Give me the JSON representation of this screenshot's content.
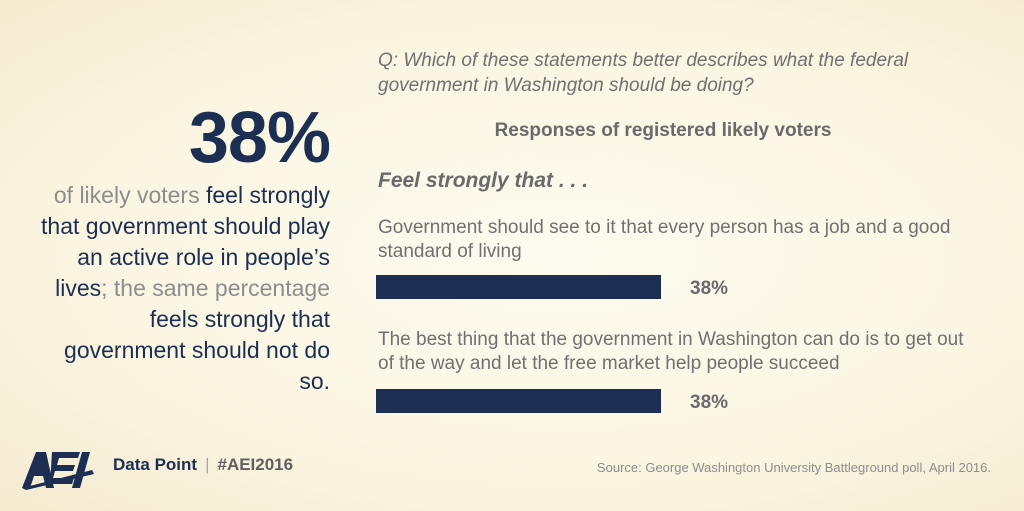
{
  "headline": {
    "value": "38%",
    "text_parts": [
      {
        "text": "of likely voters ",
        "muted": true
      },
      {
        "text": "feel strongly that government should play an active role in people’s lives",
        "muted": false
      },
      {
        "text": "; the same percentage ",
        "muted": true
      },
      {
        "text": "feels strongly that government should not do so.",
        "muted": false
      }
    ]
  },
  "question": "Q: Which of these statements better describes what the federal government in Washington should be doing?",
  "chart_data": {
    "type": "bar",
    "orientation": "horizontal",
    "title": "Responses of registered likely voters",
    "subtitle": "Feel strongly that . . .",
    "categories": [
      "Government should see to it that every person has a job and a good standard of living",
      "The best thing that the government in Washington can do is to get out of the way and let the free market help people succeed"
    ],
    "values": [
      38,
      38
    ],
    "value_labels": [
      "38%",
      "38%"
    ],
    "xlim": [
      0,
      100
    ],
    "grid": false,
    "bar_color": "#1c2f52"
  },
  "footer": {
    "logo": "aei-logo-icon",
    "label": "Data Point",
    "separator": "|",
    "hashtag": "#AEI2016"
  },
  "source": "Source: George Washington University Battleground poll, April 2016.",
  "colors": {
    "navy": "#1c2f52",
    "muted_text": "#8d8d8d",
    "gray_text": "#6a6a6a"
  }
}
